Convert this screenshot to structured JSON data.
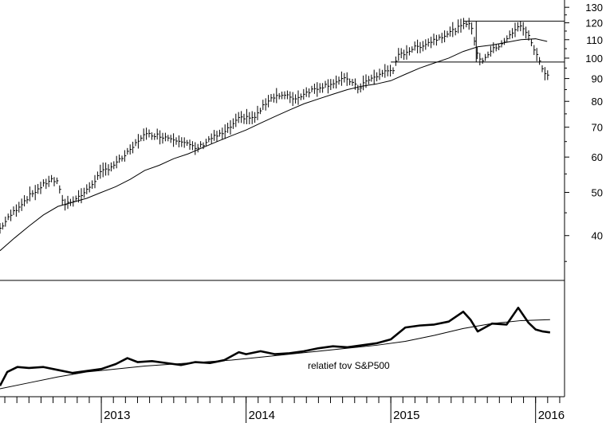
{
  "chart_data": [
    {
      "type": "line",
      "panel": "price",
      "scale": "log",
      "ylim": [
        32,
        135
      ],
      "yticks": [
        130,
        120,
        110,
        100,
        90,
        80,
        70,
        60,
        50,
        40
      ],
      "ytick_labels": [
        "130",
        "120",
        "110",
        "100",
        "90",
        "80",
        "70",
        "60",
        "50",
        "40"
      ],
      "x_years": [
        "2013",
        "2014",
        "2015",
        "2016"
      ],
      "x_year_starts": [
        2013.0,
        2014.0,
        2015.0,
        2016.0
      ],
      "xlim": [
        2012.3,
        2016.2
      ],
      "series": [
        {
          "style": "bars",
          "points": [
            [
              2012.3,
              41.5
            ],
            [
              2012.4,
              45.5
            ],
            [
              2012.5,
              49.0
            ],
            [
              2012.6,
              52.0
            ],
            [
              2012.65,
              53.5
            ],
            [
              2012.7,
              52.5
            ],
            [
              2012.72,
              49.0
            ],
            [
              2012.75,
              47.0
            ],
            [
              2012.8,
              48.0
            ],
            [
              2012.85,
              49.0
            ],
            [
              2012.9,
              50.5
            ],
            [
              2012.95,
              53.0
            ],
            [
              2013.0,
              55.5
            ],
            [
              2013.1,
              58.0
            ],
            [
              2013.2,
              62.0
            ],
            [
              2013.28,
              67.0
            ],
            [
              2013.35,
              67.5
            ],
            [
              2013.45,
              66.5
            ],
            [
              2013.55,
              65.5
            ],
            [
              2013.6,
              64.0
            ],
            [
              2013.65,
              62.5
            ],
            [
              2013.7,
              64.0
            ],
            [
              2013.75,
              66.0
            ],
            [
              2013.85,
              68.0
            ],
            [
              2013.95,
              73.0
            ],
            [
              2014.0,
              74.0
            ],
            [
              2014.05,
              73.0
            ],
            [
              2014.1,
              76.5
            ],
            [
              2014.15,
              80.5
            ],
            [
              2014.2,
              82.5
            ],
            [
              2014.3,
              82.0
            ],
            [
              2014.35,
              81.0
            ],
            [
              2014.4,
              83.5
            ],
            [
              2014.5,
              86.0
            ],
            [
              2014.6,
              88.0
            ],
            [
              2014.7,
              90.0
            ],
            [
              2014.78,
              85.0
            ],
            [
              2014.8,
              87.5
            ],
            [
              2014.9,
              91.0
            ],
            [
              2014.95,
              93.0
            ],
            [
              2015.02,
              94.5
            ],
            [
              2015.05,
              101.0
            ],
            [
              2015.15,
              105.0
            ],
            [
              2015.25,
              108.0
            ],
            [
              2015.35,
              112.0
            ],
            [
              2015.45,
              116.0
            ],
            [
              2015.55,
              121.0
            ],
            [
              2015.58,
              107.0
            ],
            [
              2015.62,
              98.0
            ],
            [
              2015.68,
              103.0
            ],
            [
              2015.75,
              107.0
            ],
            [
              2015.82,
              112.0
            ],
            [
              2015.9,
              119.0
            ],
            [
              2015.95,
              112.0
            ],
            [
              2016.0,
              103.0
            ],
            [
              2016.05,
              94.0
            ],
            [
              2016.1,
              91.0
            ]
          ]
        },
        {
          "style": "moving-average",
          "points": [
            [
              2012.3,
              37.0
            ],
            [
              2012.4,
              39.5
            ],
            [
              2012.5,
              42.0
            ],
            [
              2012.6,
              44.5
            ],
            [
              2012.7,
              46.5
            ],
            [
              2012.8,
              47.5
            ],
            [
              2012.9,
              48.5
            ],
            [
              2013.0,
              50.0
            ],
            [
              2013.1,
              51.5
            ],
            [
              2013.2,
              53.5
            ],
            [
              2013.3,
              56.0
            ],
            [
              2013.4,
              57.5
            ],
            [
              2013.5,
              59.5
            ],
            [
              2013.6,
              61.0
            ],
            [
              2013.7,
              63.0
            ],
            [
              2013.8,
              65.0
            ],
            [
              2013.9,
              67.0
            ],
            [
              2014.0,
              69.0
            ],
            [
              2014.1,
              71.5
            ],
            [
              2014.2,
              74.0
            ],
            [
              2014.3,
              76.5
            ],
            [
              2014.4,
              79.0
            ],
            [
              2014.5,
              81.0
            ],
            [
              2014.6,
              83.0
            ],
            [
              2014.7,
              85.0
            ],
            [
              2014.8,
              86.5
            ],
            [
              2014.9,
              87.5
            ],
            [
              2015.0,
              89.0
            ],
            [
              2015.1,
              92.0
            ],
            [
              2015.2,
              95.0
            ],
            [
              2015.3,
              97.5
            ],
            [
              2015.4,
              100.0
            ],
            [
              2015.5,
              103.5
            ],
            [
              2015.6,
              106.0
            ],
            [
              2015.7,
              107.0
            ],
            [
              2015.8,
              108.5
            ],
            [
              2015.9,
              110.0
            ],
            [
              2016.0,
              110.5
            ],
            [
              2016.08,
              109.0
            ]
          ]
        }
      ],
      "horizontal_levels": [
        {
          "y": 121,
          "from": 2015.5,
          "to": 2016.25
        },
        {
          "y": 98,
          "from": 2015.0,
          "to": 2016.25
        }
      ],
      "vertical_marker": {
        "x": 2015.59,
        "from": 98,
        "to": 121
      }
    },
    {
      "type": "line",
      "panel": "relative",
      "annotation": "relatief tov S&P500",
      "ylim": [
        0,
        1
      ],
      "series": [
        {
          "style": "relative-strength",
          "points": [
            [
              2012.3,
              0.03
            ],
            [
              2012.35,
              0.17
            ],
            [
              2012.42,
              0.22
            ],
            [
              2012.5,
              0.21
            ],
            [
              2012.6,
              0.22
            ],
            [
              2012.7,
              0.19
            ],
            [
              2012.8,
              0.16
            ],
            [
              2012.9,
              0.18
            ],
            [
              2013.0,
              0.2
            ],
            [
              2013.1,
              0.25
            ],
            [
              2013.18,
              0.31
            ],
            [
              2013.25,
              0.27
            ],
            [
              2013.35,
              0.28
            ],
            [
              2013.45,
              0.26
            ],
            [
              2013.55,
              0.24
            ],
            [
              2013.65,
              0.27
            ],
            [
              2013.75,
              0.26
            ],
            [
              2013.85,
              0.29
            ],
            [
              2013.95,
              0.37
            ],
            [
              2014.0,
              0.35
            ],
            [
              2014.1,
              0.38
            ],
            [
              2014.2,
              0.35
            ],
            [
              2014.3,
              0.36
            ],
            [
              2014.4,
              0.38
            ],
            [
              2014.5,
              0.41
            ],
            [
              2014.6,
              0.43
            ],
            [
              2014.7,
              0.42
            ],
            [
              2014.8,
              0.44
            ],
            [
              2014.9,
              0.46
            ],
            [
              2015.0,
              0.5
            ],
            [
              2015.1,
              0.62
            ],
            [
              2015.2,
              0.64
            ],
            [
              2015.3,
              0.65
            ],
            [
              2015.4,
              0.68
            ],
            [
              2015.5,
              0.78
            ],
            [
              2015.55,
              0.7
            ],
            [
              2015.6,
              0.58
            ],
            [
              2015.7,
              0.66
            ],
            [
              2015.8,
              0.65
            ],
            [
              2015.88,
              0.82
            ],
            [
              2015.95,
              0.67
            ],
            [
              2016.0,
              0.6
            ],
            [
              2016.05,
              0.58
            ],
            [
              2016.1,
              0.57
            ]
          ]
        },
        {
          "style": "relative-average",
          "points": [
            [
              2012.3,
              0.0
            ],
            [
              2012.5,
              0.06
            ],
            [
              2012.7,
              0.12
            ],
            [
              2012.9,
              0.17
            ],
            [
              2013.1,
              0.2
            ],
            [
              2013.3,
              0.23
            ],
            [
              2013.5,
              0.25
            ],
            [
              2013.7,
              0.27
            ],
            [
              2013.9,
              0.29
            ],
            [
              2014.1,
              0.32
            ],
            [
              2014.3,
              0.35
            ],
            [
              2014.5,
              0.38
            ],
            [
              2014.7,
              0.41
            ],
            [
              2014.9,
              0.44
            ],
            [
              2015.1,
              0.48
            ],
            [
              2015.3,
              0.54
            ],
            [
              2015.5,
              0.61
            ],
            [
              2015.7,
              0.66
            ],
            [
              2015.9,
              0.69
            ],
            [
              2016.1,
              0.7
            ]
          ]
        }
      ]
    }
  ]
}
